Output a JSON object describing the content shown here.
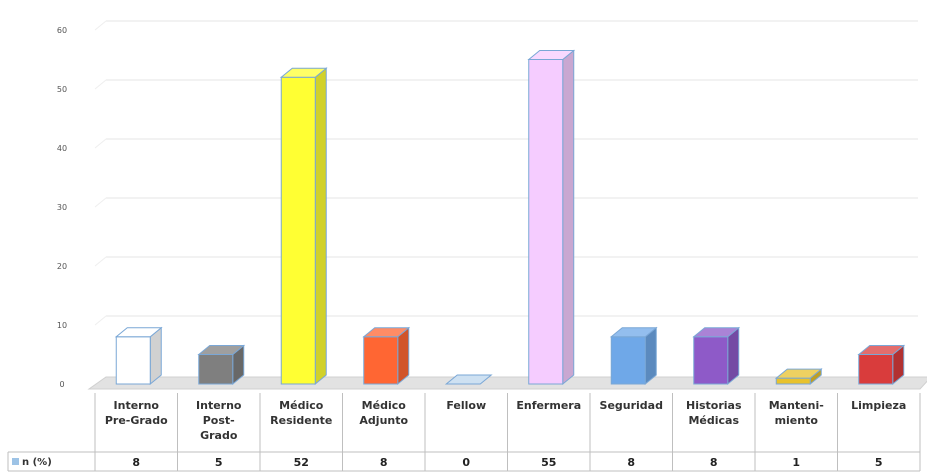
{
  "chart_data": {
    "type": "bar",
    "title": "",
    "xlabel": "",
    "ylabel": "",
    "ylim": [
      0,
      60
    ],
    "yticks": [
      0,
      10,
      20,
      30,
      40,
      50,
      60
    ],
    "grid": true,
    "style": "3d-column",
    "table_below": true,
    "categories": [
      [
        "Interno",
        "Pre-Grado"
      ],
      [
        "Interno",
        "Post-",
        "Grado"
      ],
      [
        "Médico",
        "Residente"
      ],
      [
        "Médico",
        "Adjunto"
      ],
      [
        "Fellow"
      ],
      [
        "Enfermera"
      ],
      [
        "Seguridad"
      ],
      [
        "Historias",
        "Médicas"
      ],
      [
        "Manteni-",
        "miento"
      ],
      [
        "Limpieza"
      ]
    ],
    "series": [
      {
        "name": "n (%)",
        "values": [
          8,
          5,
          52,
          8,
          0,
          55,
          8,
          8,
          1,
          5
        ]
      }
    ],
    "bar_colors": [
      "#ffffff",
      "#7f7f7f",
      "#ffff33",
      "#ff6633",
      "#bdd7ee",
      "#f5ccff",
      "#6fa8e8",
      "#8e5ac8",
      "#e8c22c",
      "#d93c3c"
    ],
    "legend_color": "#9dc3e6"
  }
}
